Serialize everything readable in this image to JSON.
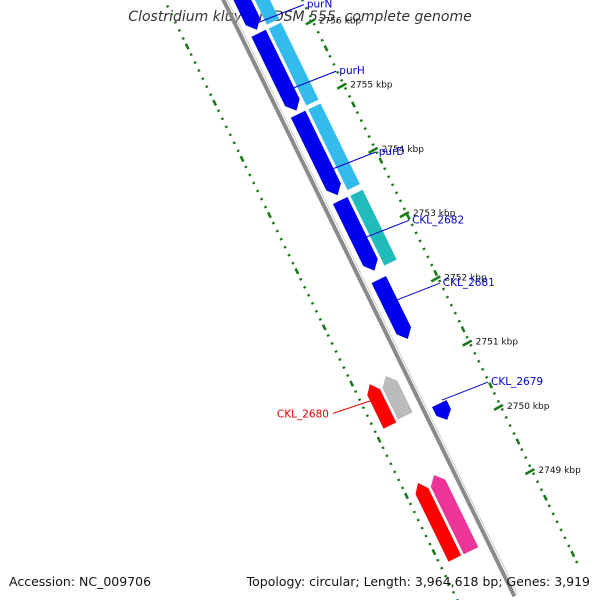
{
  "title": "Clostridium kluyveri DSM 555, complete genome",
  "footer": {
    "accession": "Accession: NC_009706",
    "summary": "Topology: circular; Length: 3,964,618 bp; Genes: 3,919"
  },
  "colors": {
    "backbone": "#8a8a8a",
    "tick": "#1a7a1a",
    "forward_cds": "#0000ee",
    "reverse_cds": "#ff0000",
    "forward_annotation_light": "#33bbee",
    "forward_annotation_teal": "#22bbbb",
    "reverse_annotation_grey": "#bbbbbb",
    "reverse_annotation_pink": "#ee3399",
    "forward_label": "#0000cc",
    "reverse_label": "#dd0000"
  },
  "scale_labels": [
    "2756 kbp",
    "2755 kbp",
    "2754 kbp",
    "2753 kbp",
    "2752 kbp",
    "2751 kbp",
    "2750 kbp",
    "2749 kbp"
  ],
  "gene_labels": [
    {
      "text": "purN",
      "strand": "forward"
    },
    {
      "text": "purH",
      "strand": "forward"
    },
    {
      "text": "purD",
      "strand": "forward"
    },
    {
      "text": "CKL_2682",
      "strand": "forward"
    },
    {
      "text": "CKL_2681",
      "strand": "forward"
    },
    {
      "text": "CKL_2679",
      "strand": "forward"
    },
    {
      "text": "CKL_2680",
      "strand": "reverse"
    }
  ]
}
